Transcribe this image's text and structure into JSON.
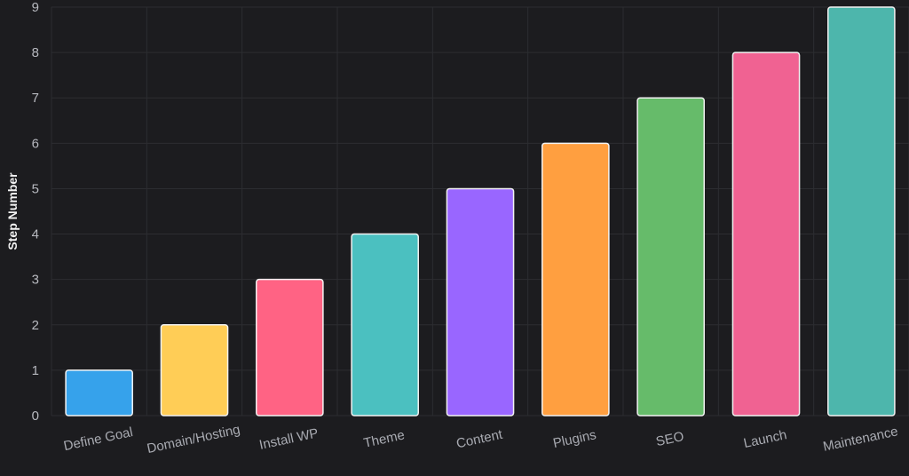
{
  "chart_data": {
    "type": "bar",
    "title": "",
    "xlabel": "",
    "ylabel": "Step Number",
    "ylim": [
      0,
      9
    ],
    "yticks": [
      0,
      1,
      2,
      3,
      4,
      5,
      6,
      7,
      8,
      9
    ],
    "grid": true,
    "legend": "none",
    "categories": [
      "Define Goal",
      "Domain/Hosting",
      "Install WP",
      "Theme",
      "Content",
      "Plugins",
      "SEO",
      "Launch",
      "Maintenance"
    ],
    "values": [
      1,
      2,
      3,
      4,
      5,
      6,
      7,
      8,
      9
    ],
    "colors": [
      "#36a2eb",
      "#ffcd56",
      "#ff6384",
      "#4bc0c0",
      "#9966ff",
      "#ff9f40",
      "#66bb6a",
      "#f06292",
      "#4db6ac"
    ]
  }
}
